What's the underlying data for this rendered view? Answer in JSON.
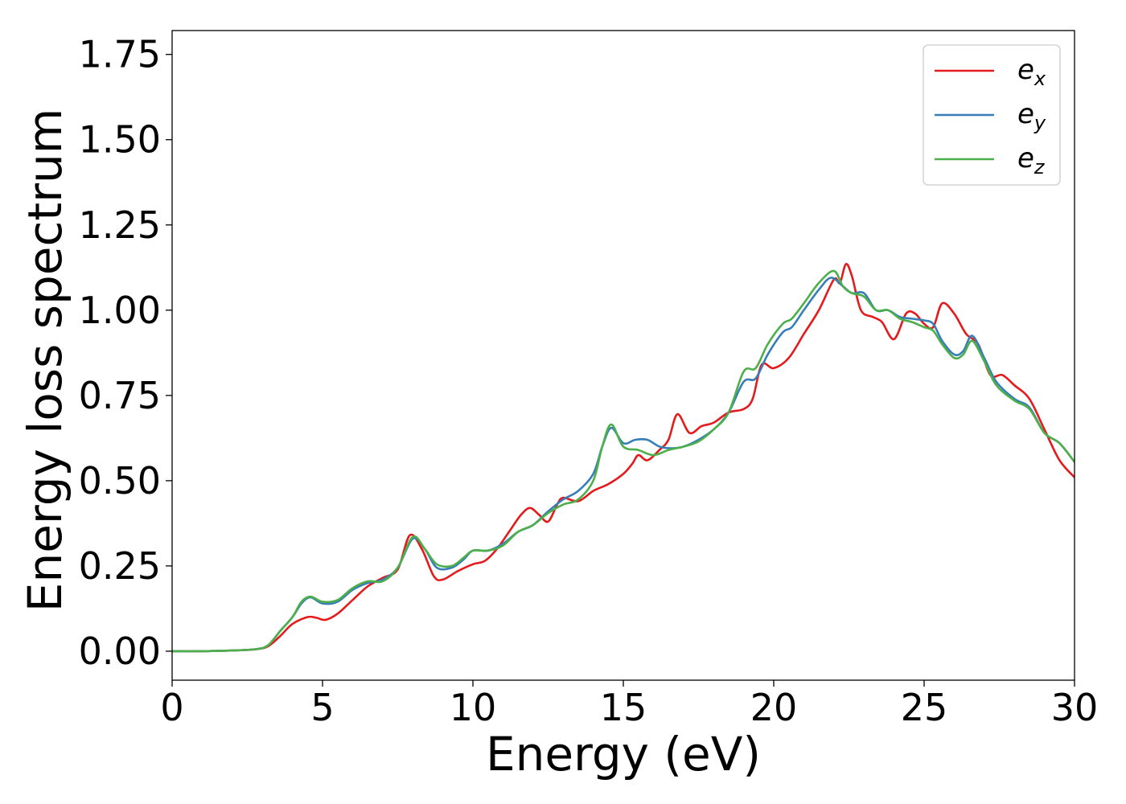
{
  "chart_data": {
    "type": "line",
    "title": "",
    "xlabel": "Energy (eV)",
    "ylabel": "Energy loss spectrum",
    "xlim": [
      0,
      30
    ],
    "ylim": [
      -0.085,
      1.82
    ],
    "xticks": [
      0,
      5,
      10,
      15,
      20,
      25,
      30
    ],
    "xtick_labels": [
      "0",
      "5",
      "10",
      "15",
      "20",
      "25",
      "30"
    ],
    "yticks": [
      0.0,
      0.25,
      0.5,
      0.75,
      1.0,
      1.25,
      1.5,
      1.75
    ],
    "ytick_labels": [
      "0.00",
      "0.25",
      "0.50",
      "0.75",
      "1.00",
      "1.25",
      "1.50",
      "1.75"
    ],
    "grid": false,
    "legend_position": "top-right",
    "series": [
      {
        "name": "e_x",
        "label_base": "e",
        "label_sub": "x",
        "color": "#e41a1c",
        "points": [
          [
            0,
            0.0
          ],
          [
            1,
            0.0
          ],
          [
            2,
            0.002
          ],
          [
            2.8,
            0.006
          ],
          [
            3.2,
            0.015
          ],
          [
            3.6,
            0.045
          ],
          [
            4.0,
            0.08
          ],
          [
            4.5,
            0.1
          ],
          [
            4.8,
            0.098
          ],
          [
            5.1,
            0.092
          ],
          [
            5.5,
            0.11
          ],
          [
            6.0,
            0.15
          ],
          [
            6.5,
            0.19
          ],
          [
            7.0,
            0.215
          ],
          [
            7.5,
            0.24
          ],
          [
            7.9,
            0.34
          ],
          [
            8.3,
            0.3
          ],
          [
            8.7,
            0.22
          ],
          [
            9.0,
            0.21
          ],
          [
            9.5,
            0.235
          ],
          [
            10.0,
            0.255
          ],
          [
            10.4,
            0.265
          ],
          [
            10.8,
            0.3
          ],
          [
            11.2,
            0.35
          ],
          [
            11.6,
            0.4
          ],
          [
            11.9,
            0.42
          ],
          [
            12.2,
            0.4
          ],
          [
            12.5,
            0.38
          ],
          [
            12.8,
            0.43
          ],
          [
            13.0,
            0.45
          ],
          [
            13.5,
            0.44
          ],
          [
            14.0,
            0.47
          ],
          [
            14.5,
            0.49
          ],
          [
            15.0,
            0.52
          ],
          [
            15.3,
            0.55
          ],
          [
            15.5,
            0.575
          ],
          [
            15.8,
            0.56
          ],
          [
            16.2,
            0.59
          ],
          [
            16.5,
            0.62
          ],
          [
            16.8,
            0.695
          ],
          [
            17.2,
            0.64
          ],
          [
            17.6,
            0.66
          ],
          [
            18.0,
            0.67
          ],
          [
            18.5,
            0.7
          ],
          [
            19.0,
            0.71
          ],
          [
            19.3,
            0.74
          ],
          [
            19.6,
            0.84
          ],
          [
            20.0,
            0.83
          ],
          [
            20.5,
            0.86
          ],
          [
            21.0,
            0.93
          ],
          [
            21.5,
            1.0
          ],
          [
            22.0,
            1.09
          ],
          [
            22.2,
            1.08
          ],
          [
            22.4,
            1.135
          ],
          [
            22.6,
            1.1
          ],
          [
            22.9,
            1.0
          ],
          [
            23.3,
            0.98
          ],
          [
            23.6,
            0.965
          ],
          [
            24.0,
            0.915
          ],
          [
            24.4,
            0.99
          ],
          [
            24.7,
            0.99
          ],
          [
            25.0,
            0.96
          ],
          [
            25.3,
            0.95
          ],
          [
            25.6,
            1.02
          ],
          [
            26.0,
            0.99
          ],
          [
            26.4,
            0.93
          ],
          [
            26.8,
            0.9
          ],
          [
            27.2,
            0.81
          ],
          [
            27.6,
            0.81
          ],
          [
            28.0,
            0.78
          ],
          [
            28.5,
            0.74
          ],
          [
            29.0,
            0.65
          ],
          [
            29.5,
            0.56
          ],
          [
            30.0,
            0.51
          ]
        ]
      },
      {
        "name": "e_y",
        "label_base": "e",
        "label_sub": "y",
        "color": "#377eb8",
        "points": [
          [
            0,
            0.0
          ],
          [
            1,
            0.0
          ],
          [
            2,
            0.002
          ],
          [
            2.8,
            0.006
          ],
          [
            3.2,
            0.018
          ],
          [
            3.6,
            0.06
          ],
          [
            4.0,
            0.1
          ],
          [
            4.3,
            0.14
          ],
          [
            4.6,
            0.158
          ],
          [
            5.0,
            0.14
          ],
          [
            5.5,
            0.145
          ],
          [
            6.0,
            0.18
          ],
          [
            6.5,
            0.2
          ],
          [
            7.0,
            0.21
          ],
          [
            7.5,
            0.245
          ],
          [
            8.0,
            0.33
          ],
          [
            8.4,
            0.3
          ],
          [
            8.8,
            0.245
          ],
          [
            9.3,
            0.245
          ],
          [
            9.7,
            0.27
          ],
          [
            10.0,
            0.295
          ],
          [
            10.5,
            0.295
          ],
          [
            11.0,
            0.315
          ],
          [
            11.5,
            0.35
          ],
          [
            12.0,
            0.37
          ],
          [
            12.5,
            0.41
          ],
          [
            13.0,
            0.445
          ],
          [
            13.5,
            0.47
          ],
          [
            14.0,
            0.52
          ],
          [
            14.3,
            0.6
          ],
          [
            14.6,
            0.655
          ],
          [
            15.0,
            0.61
          ],
          [
            15.4,
            0.62
          ],
          [
            15.8,
            0.62
          ],
          [
            16.2,
            0.6
          ],
          [
            16.6,
            0.595
          ],
          [
            17.0,
            0.6
          ],
          [
            17.5,
            0.62
          ],
          [
            18.0,
            0.65
          ],
          [
            18.5,
            0.7
          ],
          [
            19.0,
            0.79
          ],
          [
            19.4,
            0.8
          ],
          [
            19.8,
            0.87
          ],
          [
            20.3,
            0.935
          ],
          [
            20.6,
            0.95
          ],
          [
            21.0,
            1.0
          ],
          [
            21.5,
            1.06
          ],
          [
            21.9,
            1.095
          ],
          [
            22.3,
            1.07
          ],
          [
            22.6,
            1.05
          ],
          [
            23.0,
            1.05
          ],
          [
            23.4,
            1.0
          ],
          [
            23.8,
            1.0
          ],
          [
            24.2,
            0.98
          ],
          [
            24.6,
            0.975
          ],
          [
            25.0,
            0.97
          ],
          [
            25.3,
            0.96
          ],
          [
            25.6,
            0.91
          ],
          [
            26.0,
            0.87
          ],
          [
            26.3,
            0.88
          ],
          [
            26.6,
            0.925
          ],
          [
            27.0,
            0.86
          ],
          [
            27.4,
            0.79
          ],
          [
            28.0,
            0.74
          ],
          [
            28.5,
            0.715
          ],
          [
            29.0,
            0.64
          ],
          [
            29.5,
            0.61
          ],
          [
            30.0,
            0.555
          ]
        ]
      },
      {
        "name": "e_z",
        "label_base": "e",
        "label_sub": "z",
        "color": "#4daf4a",
        "points": [
          [
            0,
            0.0
          ],
          [
            1,
            0.0
          ],
          [
            2,
            0.002
          ],
          [
            2.8,
            0.006
          ],
          [
            3.2,
            0.018
          ],
          [
            3.6,
            0.06
          ],
          [
            4.0,
            0.1
          ],
          [
            4.3,
            0.145
          ],
          [
            4.6,
            0.16
          ],
          [
            5.0,
            0.145
          ],
          [
            5.5,
            0.15
          ],
          [
            6.0,
            0.185
          ],
          [
            6.5,
            0.205
          ],
          [
            7.0,
            0.205
          ],
          [
            7.5,
            0.245
          ],
          [
            8.0,
            0.335
          ],
          [
            8.4,
            0.3
          ],
          [
            8.8,
            0.255
          ],
          [
            9.3,
            0.25
          ],
          [
            9.7,
            0.275
          ],
          [
            10.0,
            0.295
          ],
          [
            10.5,
            0.295
          ],
          [
            11.0,
            0.31
          ],
          [
            11.5,
            0.35
          ],
          [
            12.0,
            0.37
          ],
          [
            12.5,
            0.405
          ],
          [
            13.0,
            0.43
          ],
          [
            13.5,
            0.445
          ],
          [
            14.0,
            0.5
          ],
          [
            14.3,
            0.6
          ],
          [
            14.6,
            0.665
          ],
          [
            15.0,
            0.6
          ],
          [
            15.5,
            0.59
          ],
          [
            16.0,
            0.575
          ],
          [
            16.5,
            0.59
          ],
          [
            17.0,
            0.6
          ],
          [
            17.5,
            0.615
          ],
          [
            18.0,
            0.65
          ],
          [
            18.5,
            0.7
          ],
          [
            19.0,
            0.82
          ],
          [
            19.4,
            0.83
          ],
          [
            19.8,
            0.9
          ],
          [
            20.3,
            0.96
          ],
          [
            20.6,
            0.975
          ],
          [
            21.0,
            1.02
          ],
          [
            21.5,
            1.08
          ],
          [
            22.0,
            1.115
          ],
          [
            22.3,
            1.07
          ],
          [
            22.6,
            1.05
          ],
          [
            23.0,
            1.04
          ],
          [
            23.4,
            1.0
          ],
          [
            23.8,
            1.0
          ],
          [
            24.2,
            0.975
          ],
          [
            24.6,
            0.965
          ],
          [
            25.0,
            0.95
          ],
          [
            25.3,
            0.94
          ],
          [
            25.6,
            0.9
          ],
          [
            26.0,
            0.86
          ],
          [
            26.3,
            0.87
          ],
          [
            26.6,
            0.91
          ],
          [
            27.0,
            0.85
          ],
          [
            27.4,
            0.78
          ],
          [
            28.0,
            0.735
          ],
          [
            28.5,
            0.71
          ],
          [
            29.0,
            0.64
          ],
          [
            29.5,
            0.61
          ],
          [
            30.0,
            0.555
          ]
        ]
      }
    ]
  }
}
